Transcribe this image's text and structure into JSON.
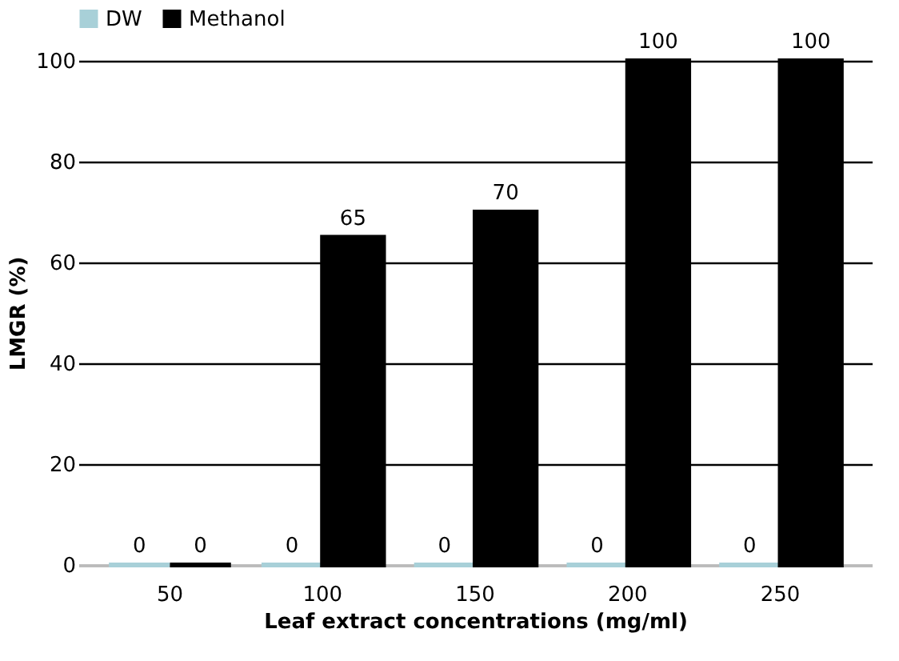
{
  "chart_data": {
    "type": "bar",
    "xlabel": "Leaf extract concentrations (mg/ml)",
    "ylabel": "LMGR (%)",
    "categories": [
      "50",
      "100",
      "150",
      "200",
      "250"
    ],
    "series": [
      {
        "name": "DW",
        "color": "#a8d0d8",
        "values": [
          0,
          0,
          0,
          0,
          0
        ]
      },
      {
        "name": "Methanol",
        "color": "#000000",
        "values": [
          0,
          65,
          70,
          100,
          100
        ]
      }
    ],
    "ylim": [
      0,
      100
    ],
    "yticks": [
      0,
      20,
      40,
      60,
      80,
      100
    ],
    "grid": "y",
    "legend": "top",
    "data_labels": true
  }
}
